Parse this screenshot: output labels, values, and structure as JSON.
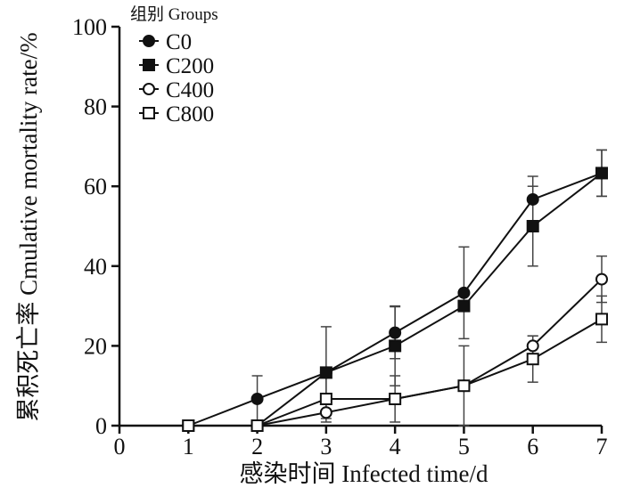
{
  "chart_data": {
    "type": "line",
    "title": "",
    "xlabel": "感染时间 Infected time/d",
    "ylabel": "累积死亡率 Cmulative mortality rate/%",
    "xlim": [
      0,
      7
    ],
    "ylim": [
      0,
      100
    ],
    "x_ticks": [
      "0",
      "1",
      "2",
      "3",
      "4",
      "5",
      "6",
      "7"
    ],
    "y_ticks": [
      "0",
      "20",
      "40",
      "60",
      "80",
      "100"
    ],
    "grid": false,
    "legend": {
      "title": "组别 Groups",
      "placement": "top-left"
    },
    "series": [
      {
        "name": "C0",
        "marker": "filled-circle",
        "color": "#111111",
        "x": [
          1,
          2,
          3,
          4,
          5,
          6,
          7
        ],
        "y": [
          0,
          6.7,
          13.3,
          23.3,
          33.3,
          56.7,
          63.3
        ],
        "err": [
          0,
          5.8,
          0,
          6.5,
          11.5,
          5.8,
          5.8
        ]
      },
      {
        "name": "C200",
        "marker": "filled-square",
        "color": "#111111",
        "x": [
          1,
          2,
          3,
          4,
          5,
          6,
          7
        ],
        "y": [
          0,
          0,
          13.3,
          20,
          30,
          50,
          63.3
        ],
        "err": [
          0,
          0,
          11.5,
          10,
          0,
          10,
          5.8
        ]
      },
      {
        "name": "C400",
        "marker": "open-circle",
        "color": "#111111",
        "x": [
          1,
          2,
          3,
          4,
          5,
          6,
          7
        ],
        "y": [
          0,
          0,
          3.3,
          6.7,
          10,
          20,
          36.7
        ],
        "err": [
          0,
          0,
          0,
          0,
          0,
          2.5,
          5.8
        ]
      },
      {
        "name": "C800",
        "marker": "open-square",
        "color": "#111111",
        "x": [
          1,
          2,
          3,
          4,
          5,
          6,
          7
        ],
        "y": [
          0,
          0,
          6.7,
          6.7,
          10,
          16.7,
          26.7
        ],
        "err": [
          0,
          0,
          5.8,
          5.8,
          10,
          5.8,
          5.8
        ]
      }
    ]
  }
}
